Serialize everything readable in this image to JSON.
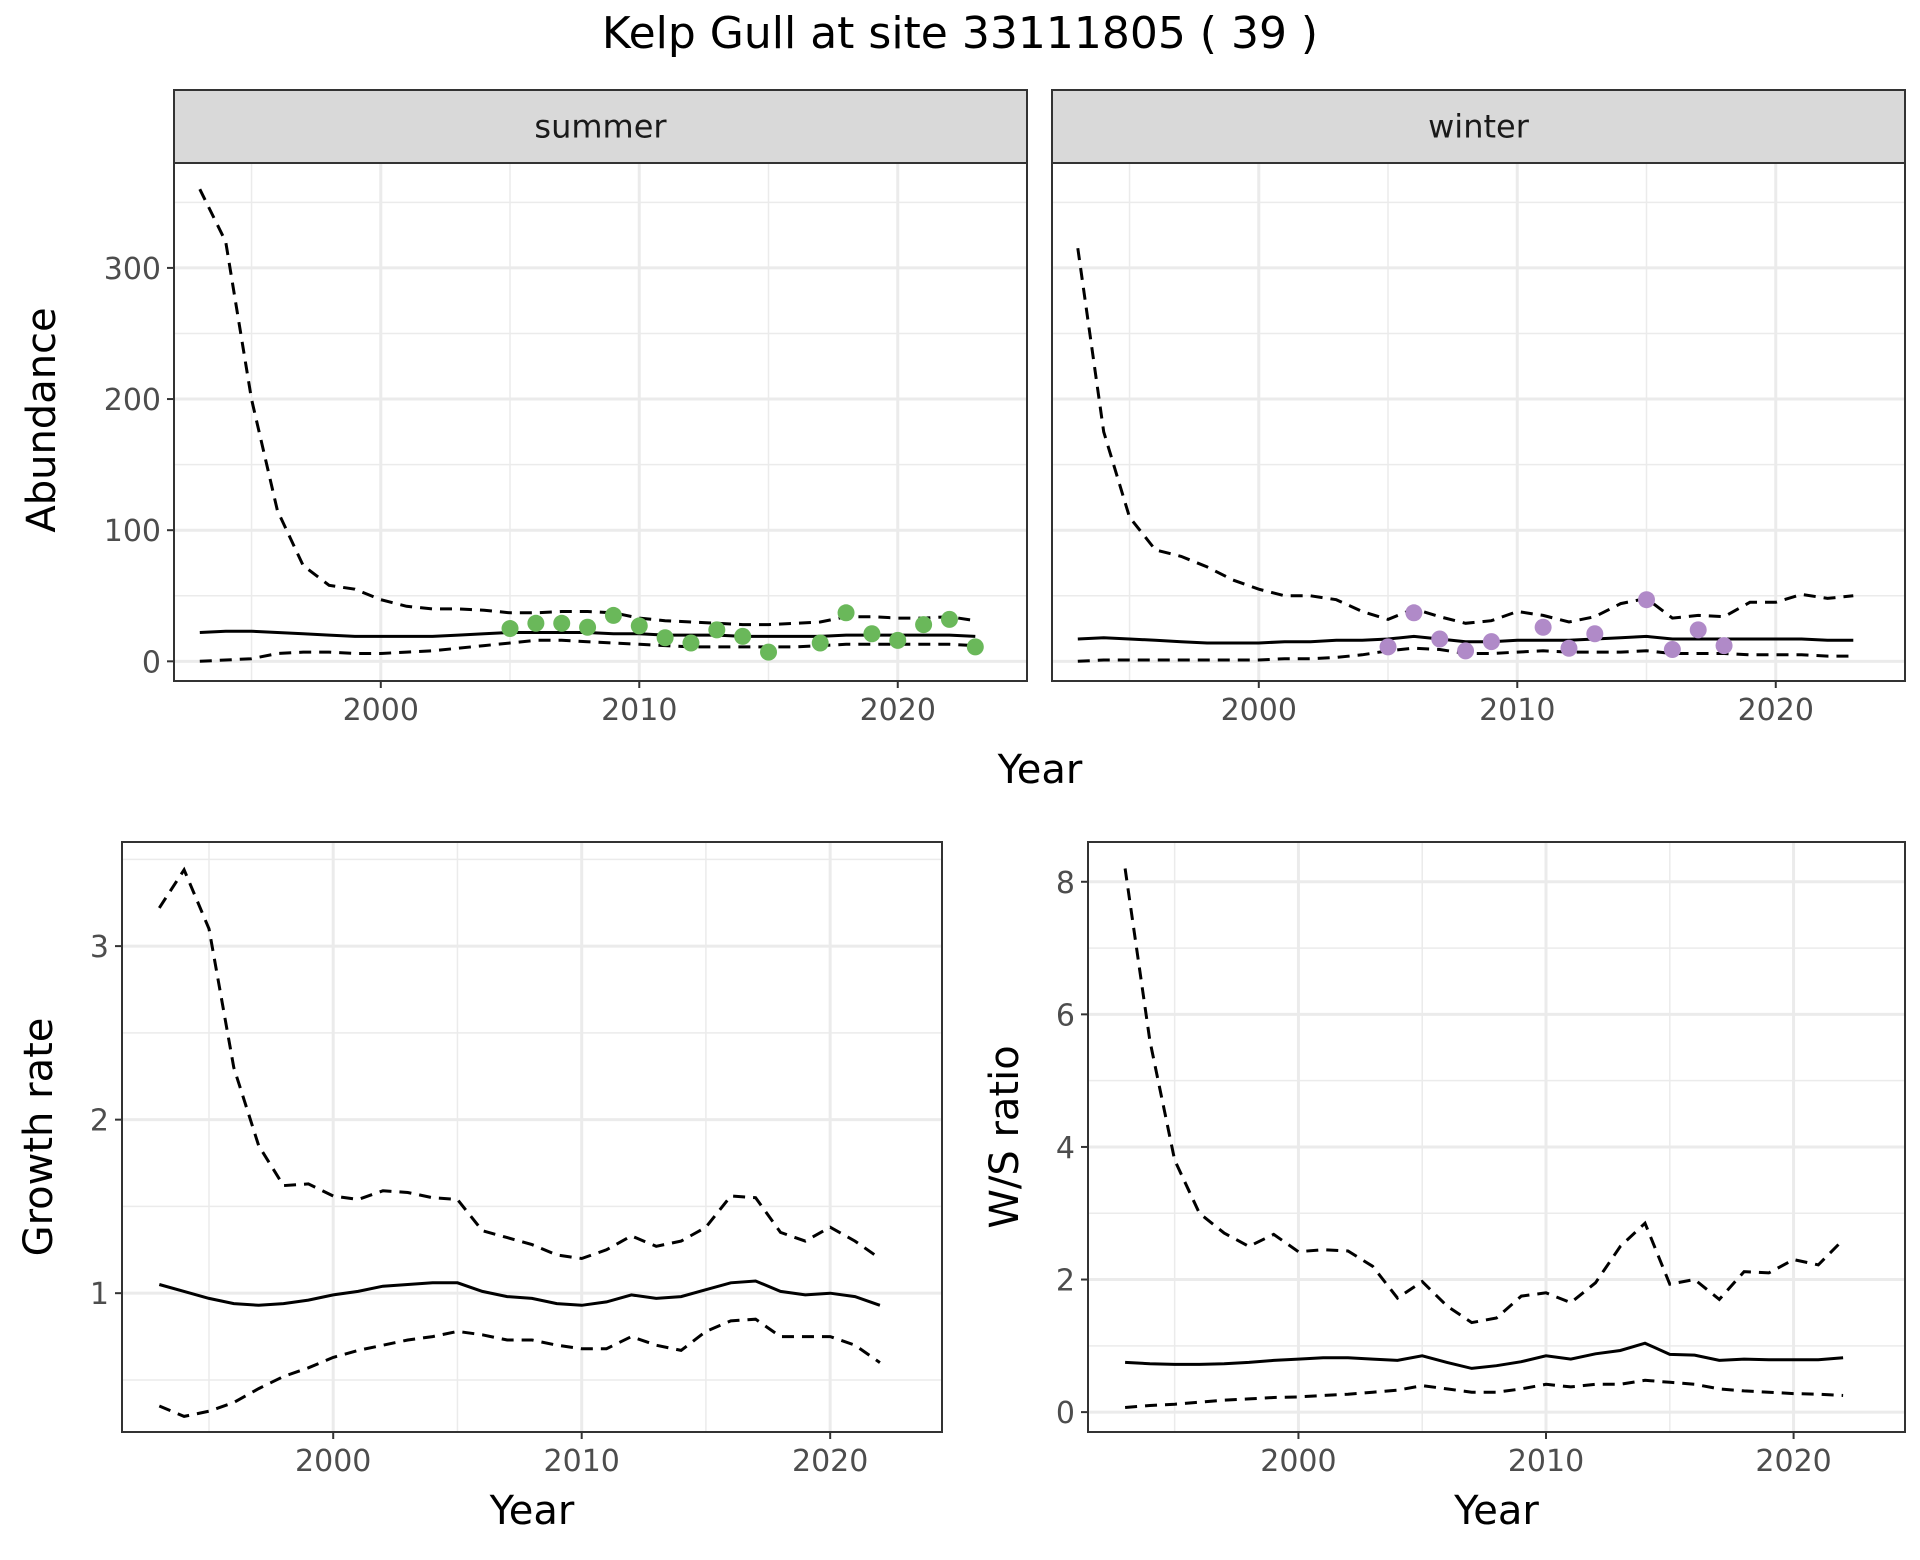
{
  "title": "Kelp Gull at site 33111805 ( 39 )",
  "colors": {
    "summer_points": "#6ab85a",
    "winter_points": "#b08ac8",
    "line": "#000000",
    "grid": "#ebebeb",
    "strip": "#d9d9d9",
    "tick_text": "#4d4d4d"
  },
  "chart_data": [
    {
      "type": "line",
      "facet": "summer",
      "strip_label": "summer",
      "xlabel": "Year",
      "ylabel": "Abundance",
      "xlim": [
        1992,
        2025
      ],
      "ylim": [
        -15,
        380
      ],
      "xticks": [
        2000,
        2010,
        2020
      ],
      "yticks": [
        0,
        100,
        200,
        300
      ],
      "x": [
        1993,
        1994,
        1995,
        1996,
        1997,
        1998,
        1999,
        2000,
        2001,
        2002,
        2003,
        2004,
        2005,
        2006,
        2007,
        2008,
        2009,
        2010,
        2011,
        2012,
        2013,
        2014,
        2015,
        2016,
        2017,
        2018,
        2019,
        2020,
        2021,
        2022,
        2023
      ],
      "series": [
        {
          "role": "estimate",
          "style": "solid",
          "values": [
            22,
            23,
            23,
            22,
            21,
            20,
            19,
            19,
            19,
            19,
            20,
            21,
            22,
            22,
            22,
            22,
            21,
            21,
            20,
            20,
            20,
            19,
            19,
            19,
            19,
            20,
            20,
            20,
            20,
            20,
            19
          ]
        },
        {
          "role": "upper",
          "style": "dashed",
          "values": [
            360,
            320,
            200,
            115,
            73,
            58,
            55,
            47,
            42,
            40,
            40,
            39,
            37,
            37,
            38,
            38,
            37,
            33,
            31,
            30,
            29,
            28,
            28,
            29,
            30,
            34,
            34,
            33,
            33,
            34,
            31
          ]
        },
        {
          "role": "lower",
          "style": "dashed",
          "values": [
            0,
            1,
            2,
            6,
            7,
            7,
            6,
            6,
            7,
            8,
            10,
            12,
            14,
            16,
            16,
            15,
            14,
            13,
            12,
            11,
            11,
            11,
            11,
            11,
            12,
            13,
            13,
            13,
            13,
            13,
            12
          ]
        }
      ],
      "points": {
        "name": "observed",
        "x": [
          2005,
          2006,
          2007,
          2008,
          2009,
          2010,
          2011,
          2012,
          2013,
          2014,
          2015,
          2017,
          2018,
          2019,
          2020,
          2021,
          2022,
          2023
        ],
        "y": [
          25,
          29,
          29,
          26,
          35,
          27,
          18,
          14,
          24,
          19,
          7,
          14,
          37,
          21,
          16,
          28,
          32,
          11
        ]
      }
    },
    {
      "type": "line",
      "facet": "winter",
      "strip_label": "winter",
      "xlabel": "Year",
      "ylabel": "Abundance",
      "xlim": [
        1992,
        2025
      ],
      "ylim": [
        -15,
        380
      ],
      "xticks": [
        2000,
        2010,
        2020
      ],
      "yticks": [
        0,
        100,
        200,
        300
      ],
      "x": [
        1993,
        1994,
        1995,
        1996,
        1997,
        1998,
        1999,
        2000,
        2001,
        2002,
        2003,
        2004,
        2005,
        2006,
        2007,
        2008,
        2009,
        2010,
        2011,
        2012,
        2013,
        2014,
        2015,
        2016,
        2017,
        2018,
        2019,
        2020,
        2021,
        2022,
        2023
      ],
      "series": [
        {
          "role": "estimate",
          "style": "solid",
          "values": [
            17,
            18,
            17,
            16,
            15,
            14,
            14,
            14,
            15,
            15,
            16,
            16,
            17,
            19,
            17,
            15,
            15,
            16,
            16,
            16,
            17,
            18,
            19,
            17,
            17,
            17,
            17,
            17,
            17,
            16,
            16
          ]
        },
        {
          "role": "upper",
          "style": "dashed",
          "values": [
            315,
            175,
            110,
            85,
            80,
            72,
            62,
            55,
            50,
            50,
            47,
            38,
            32,
            40,
            34,
            29,
            31,
            38,
            35,
            30,
            34,
            44,
            48,
            33,
            35,
            34,
            45,
            45,
            51,
            48,
            50
          ]
        },
        {
          "role": "lower",
          "style": "dashed",
          "values": [
            0,
            1,
            1,
            1,
            1,
            1,
            1,
            1,
            2,
            2,
            3,
            5,
            8,
            10,
            9,
            6,
            6,
            7,
            8,
            7,
            7,
            7,
            8,
            6,
            6,
            6,
            5,
            5,
            5,
            4,
            4
          ]
        }
      ],
      "points": {
        "name": "observed",
        "x": [
          2005,
          2006,
          2007,
          2008,
          2009,
          2011,
          2012,
          2013,
          2015,
          2016,
          2017,
          2018
        ],
        "y": [
          11,
          37,
          17,
          8,
          15,
          26,
          10,
          21,
          47,
          9,
          24,
          12
        ]
      }
    },
    {
      "type": "line",
      "facet": "growth",
      "xlabel": "Year",
      "ylabel": "Growth rate",
      "xlim": [
        1991.5,
        2024.5
      ],
      "ylim": [
        0.2,
        3.6
      ],
      "xticks": [
        2000,
        2010,
        2020
      ],
      "yticks": [
        1,
        2,
        3
      ],
      "x": [
        1993,
        1994,
        1995,
        1996,
        1997,
        1998,
        1999,
        2000,
        2001,
        2002,
        2003,
        2004,
        2005,
        2006,
        2007,
        2008,
        2009,
        2010,
        2011,
        2012,
        2013,
        2014,
        2015,
        2016,
        2017,
        2018,
        2019,
        2020,
        2021,
        2022
      ],
      "series": [
        {
          "role": "estimate",
          "style": "solid",
          "values": [
            1.05,
            1.01,
            0.97,
            0.94,
            0.93,
            0.94,
            0.96,
            0.99,
            1.01,
            1.04,
            1.05,
            1.06,
            1.06,
            1.01,
            0.98,
            0.97,
            0.94,
            0.93,
            0.95,
            0.99,
            0.97,
            0.98,
            1.02,
            1.06,
            1.07,
            1.01,
            0.99,
            1.0,
            0.98,
            0.93
          ]
        },
        {
          "role": "upper",
          "style": "dashed",
          "values": [
            3.22,
            3.44,
            3.1,
            2.3,
            1.85,
            1.62,
            1.63,
            1.56,
            1.54,
            1.59,
            1.58,
            1.55,
            1.54,
            1.36,
            1.32,
            1.28,
            1.22,
            1.2,
            1.25,
            1.33,
            1.27,
            1.3,
            1.38,
            1.56,
            1.55,
            1.35,
            1.3,
            1.38,
            1.3,
            1.2
          ]
        },
        {
          "role": "lower",
          "style": "dashed",
          "values": [
            0.35,
            0.29,
            0.32,
            0.37,
            0.45,
            0.52,
            0.57,
            0.63,
            0.67,
            0.7,
            0.73,
            0.75,
            0.78,
            0.76,
            0.73,
            0.73,
            0.7,
            0.68,
            0.68,
            0.75,
            0.7,
            0.67,
            0.78,
            0.84,
            0.85,
            0.75,
            0.75,
            0.75,
            0.7,
            0.6
          ]
        }
      ]
    },
    {
      "type": "line",
      "facet": "ratio",
      "xlabel": "Year",
      "ylabel": "W/S ratio",
      "xlim": [
        1991.5,
        2024.5
      ],
      "ylim": [
        -0.3,
        8.6
      ],
      "xticks": [
        2000,
        2010,
        2020
      ],
      "yticks": [
        0,
        2,
        4,
        6,
        8
      ],
      "x": [
        1993,
        1994,
        1995,
        1996,
        1997,
        1998,
        1999,
        2000,
        2001,
        2002,
        2003,
        2004,
        2005,
        2006,
        2007,
        2008,
        2009,
        2010,
        2011,
        2012,
        2013,
        2014,
        2015,
        2016,
        2017,
        2018,
        2019,
        2020,
        2021,
        2022
      ],
      "series": [
        {
          "role": "estimate",
          "style": "solid",
          "values": [
            0.75,
            0.73,
            0.72,
            0.72,
            0.73,
            0.75,
            0.78,
            0.8,
            0.82,
            0.82,
            0.8,
            0.78,
            0.85,
            0.75,
            0.66,
            0.7,
            0.76,
            0.85,
            0.8,
            0.88,
            0.93,
            1.04,
            0.87,
            0.86,
            0.78,
            0.8,
            0.79,
            0.79,
            0.79,
            0.82
          ]
        },
        {
          "role": "upper",
          "style": "dashed",
          "values": [
            8.2,
            5.6,
            3.8,
            3.0,
            2.7,
            2.5,
            2.68,
            2.42,
            2.45,
            2.43,
            2.2,
            1.72,
            1.97,
            1.6,
            1.35,
            1.42,
            1.75,
            1.8,
            1.65,
            1.95,
            2.5,
            2.85,
            1.93,
            2.0,
            1.7,
            2.12,
            2.1,
            2.3,
            2.22,
            2.6
          ]
        },
        {
          "role": "lower",
          "style": "dashed",
          "values": [
            0.07,
            0.1,
            0.12,
            0.15,
            0.18,
            0.2,
            0.22,
            0.23,
            0.25,
            0.27,
            0.3,
            0.33,
            0.4,
            0.35,
            0.3,
            0.3,
            0.35,
            0.42,
            0.38,
            0.42,
            0.42,
            0.48,
            0.45,
            0.42,
            0.35,
            0.32,
            0.3,
            0.28,
            0.27,
            0.25
          ]
        }
      ]
    }
  ]
}
